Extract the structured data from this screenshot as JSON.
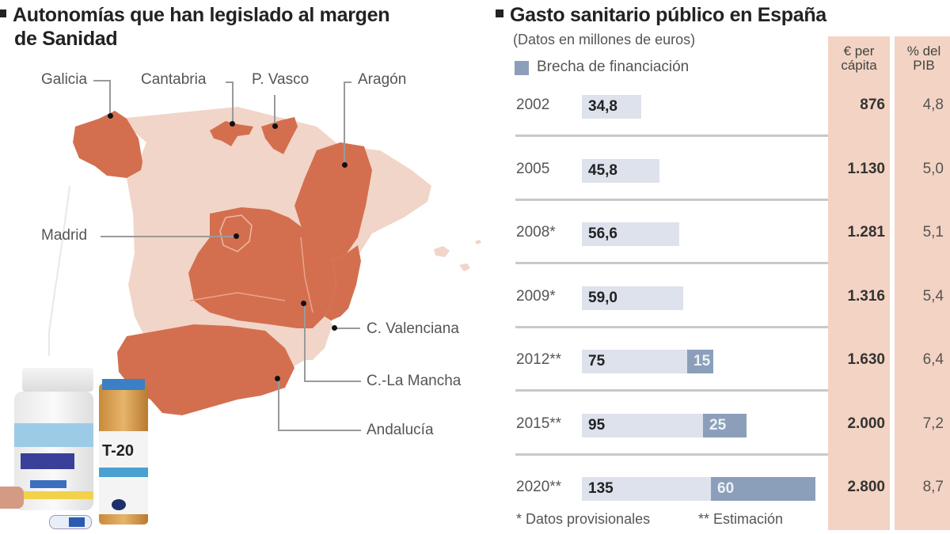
{
  "map_panel": {
    "title_line1": "Autonomías que han legislado al margen",
    "title_line2": "de Sanidad",
    "colors": {
      "highlighted": "#d36f4f",
      "other": "#f1d5c8"
    },
    "regions_highlighted": [
      {
        "name": "Galicia"
      },
      {
        "name": "Cantabria"
      },
      {
        "name": "P. Vasco"
      },
      {
        "name": "Aragón"
      },
      {
        "name": "Madrid"
      },
      {
        "name": "C. Valenciana"
      },
      {
        "name": "C.-La Mancha"
      },
      {
        "name": "Andalucía"
      }
    ],
    "medicine_label": "T-20"
  },
  "chart_panel": {
    "title": "Gasto sanitario público en España",
    "subtitle": "(Datos en millones de euros)",
    "legend_label": "Brecha de financiación",
    "col_per_capita": "€ per cápita",
    "col_per_capita_l1": "€ per",
    "col_per_capita_l2": "cápita",
    "col_pib_l1": "% del",
    "col_pib_l2": "PIB",
    "footnote_1": "* Datos provisionales",
    "footnote_2": "** Estimación"
  },
  "chart_data": {
    "type": "bar",
    "title": "Gasto sanitario público en España",
    "subtitle": "(Datos en millones de euros)",
    "categories": [
      "2002",
      "2005",
      "2008*",
      "2009*",
      "2012**",
      "2015**",
      "2020**"
    ],
    "series": [
      {
        "name": "Gasto sanitario público",
        "values": [
          34.8,
          45.8,
          56.6,
          59.0,
          75,
          95,
          135
        ],
        "labels": [
          "34,8",
          "45,8",
          "56,6",
          "59,0",
          "75",
          "95",
          "135"
        ],
        "color": "#dde2ec"
      },
      {
        "name": "Brecha de financiación",
        "values": [
          null,
          null,
          null,
          null,
          15,
          25,
          60
        ],
        "labels": [
          "",
          "",
          "",
          "",
          "15",
          "25",
          "60"
        ],
        "color": "#8b9fba"
      }
    ],
    "table_columns": [
      {
        "name": "€ per cápita",
        "values": [
          "876",
          "1.130",
          "1.281",
          "1.316",
          "1.630",
          "2.000",
          "2.800"
        ]
      },
      {
        "name": "% del PIB",
        "values": [
          "4,8",
          "5,0",
          "5,1",
          "5,4",
          "6,4",
          "7,2",
          "8,7"
        ]
      }
    ],
    "legend": [
      "Brecha de financiación"
    ],
    "footnotes": [
      "* Datos provisionales",
      "** Estimación"
    ],
    "xlabel": "",
    "ylabel": ""
  }
}
